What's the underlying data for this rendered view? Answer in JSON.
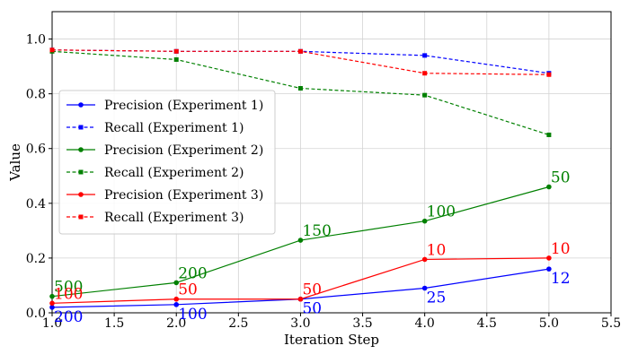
{
  "chart_data": {
    "type": "line",
    "title": "",
    "xlabel": "Iteration Step",
    "ylabel": "Value",
    "xlim": [
      1.0,
      5.5
    ],
    "ylim": [
      0.0,
      1.1
    ],
    "xticks": [
      1.0,
      1.5,
      2.0,
      2.5,
      3.0,
      3.5,
      4.0,
      4.5,
      5.0,
      5.5
    ],
    "xtick_labels": [
      "1.0",
      "1.5",
      "2.0",
      "2.5",
      "3.0",
      "3.5",
      "4.0",
      "4.5",
      "5.0",
      "5.5"
    ],
    "yticks": [
      0.0,
      0.2,
      0.4,
      0.6,
      0.8,
      1.0
    ],
    "ytick_labels": [
      "0.0",
      "0.2",
      "0.4",
      "0.6",
      "0.8",
      "1.0"
    ],
    "grid": true,
    "legend_position": "center-left",
    "x": [
      1,
      2,
      3,
      4,
      5
    ],
    "series": [
      {
        "name": "Precision (Experiment 1)",
        "color": "#0000ff",
        "dashed": false,
        "marker": "circle",
        "values": [
          0.02,
          0.03,
          0.05,
          0.09,
          0.16
        ],
        "labels": [
          "200",
          "100",
          "50",
          "25",
          "12"
        ],
        "label_side": "below"
      },
      {
        "name": "Recall (Experiment 1)",
        "color": "#0000ff",
        "dashed": true,
        "marker": "square",
        "values": [
          0.96,
          0.955,
          0.955,
          0.94,
          0.875
        ]
      },
      {
        "name": "Precision (Experiment 2)",
        "color": "#008000",
        "dashed": false,
        "marker": "circle",
        "values": [
          0.06,
          0.11,
          0.265,
          0.335,
          0.46
        ],
        "labels": [
          "500",
          "200",
          "150",
          "100",
          "50"
        ],
        "label_side": "above"
      },
      {
        "name": "Recall (Experiment 2)",
        "color": "#008000",
        "dashed": true,
        "marker": "square",
        "values": [
          0.955,
          0.925,
          0.82,
          0.795,
          0.65
        ]
      },
      {
        "name": "Precision (Experiment 3)",
        "color": "#ff0000",
        "dashed": false,
        "marker": "circle",
        "values": [
          0.035,
          0.05,
          0.05,
          0.195,
          0.2
        ],
        "labels": [
          "100",
          "50",
          "50",
          "10",
          "10"
        ],
        "label_side": "above"
      },
      {
        "name": "Recall (Experiment 3)",
        "color": "#ff0000",
        "dashed": true,
        "marker": "square",
        "values": [
          0.96,
          0.955,
          0.955,
          0.875,
          0.87
        ]
      }
    ]
  }
}
